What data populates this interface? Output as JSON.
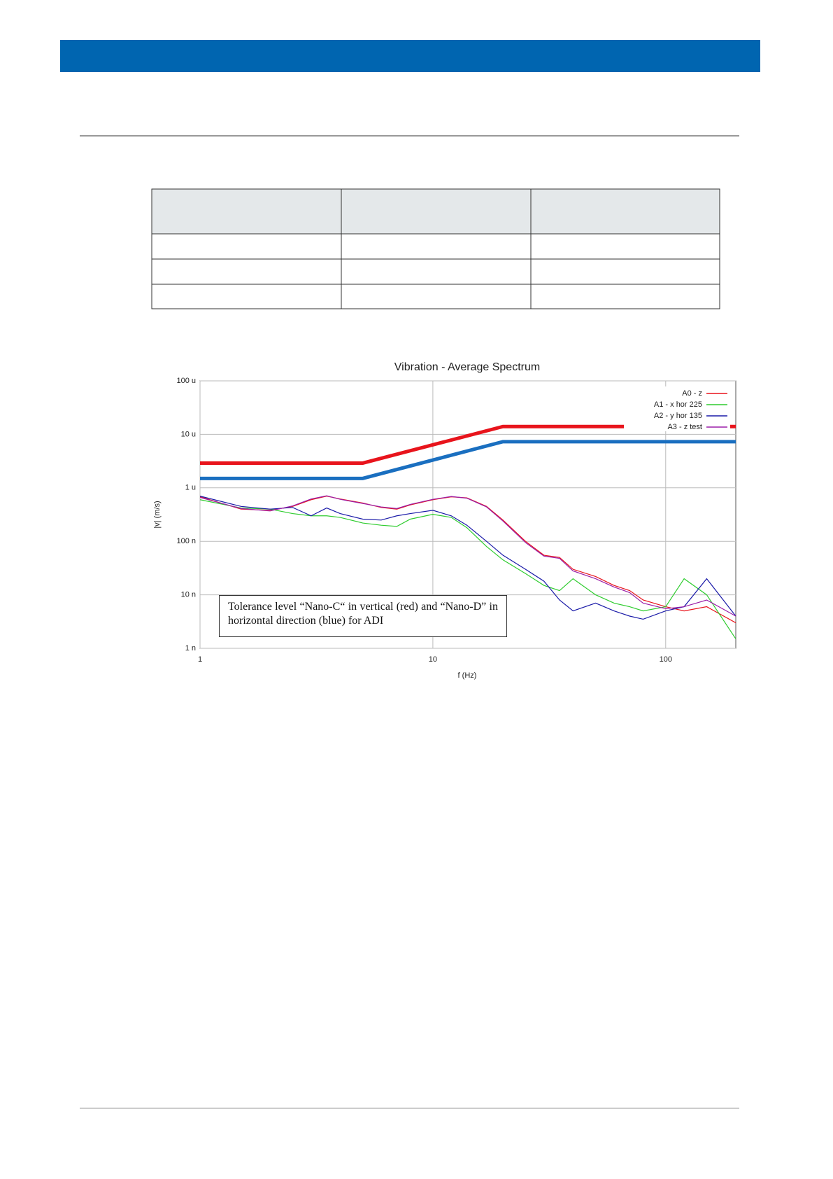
{
  "chart_data": {
    "type": "line",
    "title": "Vibration - Average Spectrum",
    "x_label": "f (Hz)",
    "y_label": "|v| (m/s)",
    "log_x": true,
    "log_y": true,
    "grid": true,
    "legend": "upper right",
    "xlim": [
      1,
      200
    ],
    "ylim": [
      1e-09,
      0.0001
    ],
    "xticks": [
      1,
      10,
      100
    ],
    "yticks": [
      {
        "value": 1e-09,
        "label": "1 n"
      },
      {
        "value": 1e-08,
        "label": "10 n"
      },
      {
        "value": 1e-07,
        "label": "100 n"
      },
      {
        "value": 1e-06,
        "label": "1 u"
      },
      {
        "value": 1e-05,
        "label": "10 u"
      },
      {
        "value": 0.0001,
        "label": "100 u"
      }
    ],
    "x": [
      1,
      1.5,
      2,
      2.5,
      3,
      3.5,
      4,
      5,
      6,
      7,
      8,
      10,
      12,
      14,
      17,
      20,
      25,
      30,
      35,
      40,
      50,
      60,
      70,
      80,
      100,
      120,
      150,
      200
    ],
    "series": [
      {
        "name": "A0 - z",
        "color": "#e8141c",
        "values": [
          6.8e-07,
          4e-07,
          3.8e-07,
          4.5e-07,
          6e-07,
          7e-07,
          6.2e-07,
          5.2e-07,
          4.3e-07,
          4e-07,
          4.8e-07,
          6e-07,
          6.8e-07,
          6.5e-07,
          4.5e-07,
          2.5e-07,
          1e-07,
          5.5e-08,
          5e-08,
          3e-08,
          2.2e-08,
          1.5e-08,
          1.2e-08,
          8e-09,
          6e-09,
          5e-09,
          6e-09,
          3e-09
        ]
      },
      {
        "name": "A1 - x hor 225",
        "color": "#2ecc2e",
        "values": [
          6e-07,
          4.2e-07,
          4e-07,
          3.3e-07,
          3e-07,
          3e-07,
          2.8e-07,
          2.2e-07,
          2e-07,
          1.9e-07,
          2.6e-07,
          3.2e-07,
          2.8e-07,
          1.8e-07,
          8e-08,
          4.5e-08,
          2.5e-08,
          1.5e-08,
          1.2e-08,
          2e-08,
          1e-08,
          7e-09,
          6e-09,
          5e-09,
          6e-09,
          2e-08,
          1e-08,
          1.5e-09
        ]
      },
      {
        "name": "A2 - y hor 135",
        "color": "#1a1aa8",
        "values": [
          7e-07,
          4.5e-07,
          4e-07,
          4.3e-07,
          3e-07,
          4.2e-07,
          3.3e-07,
          2.6e-07,
          2.5e-07,
          3e-07,
          3.3e-07,
          3.8e-07,
          3e-07,
          2e-07,
          1e-07,
          5.5e-08,
          3e-08,
          1.8e-08,
          8e-09,
          5e-09,
          7e-09,
          5e-09,
          4e-09,
          3.5e-09,
          5e-09,
          6e-09,
          2e-08,
          4e-09
        ]
      },
      {
        "name": "A3 - z test",
        "color": "#9b1fa8",
        "values": [
          6.6e-07,
          4.1e-07,
          3.7e-07,
          4.6e-07,
          6.2e-07,
          7.1e-07,
          6.1e-07,
          5.1e-07,
          4.4e-07,
          4.1e-07,
          4.9e-07,
          6.1e-07,
          6.9e-07,
          6.4e-07,
          4.4e-07,
          2.4e-07,
          9.5e-08,
          5.3e-08,
          4.8e-08,
          2.8e-08,
          2e-08,
          1.4e-08,
          1.1e-08,
          7e-09,
          5.5e-09,
          6e-09,
          8e-09,
          4e-09
        ]
      }
    ],
    "tolerance": [
      {
        "color": "#e8141c",
        "x": [
          1,
          5,
          20,
          200
        ],
        "values": [
          2.9e-06,
          2.9e-06,
          1.4e-05,
          1.4e-05
        ]
      },
      {
        "color": "#1a6fc0",
        "x": [
          1,
          5,
          20,
          200
        ],
        "values": [
          1.5e-06,
          1.5e-06,
          7.3e-06,
          7.3e-06
        ]
      }
    ],
    "annotation": "Tolerance level “Nano-C“ in vertical (red) and “Nano-D” in horizontal direction (blue) for ADI"
  }
}
